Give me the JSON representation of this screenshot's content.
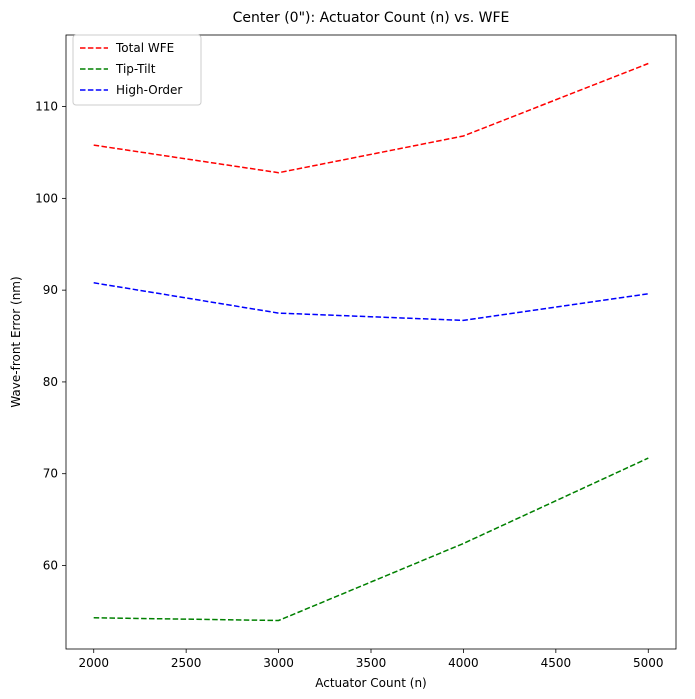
{
  "chart_data": {
    "type": "line",
    "title": "Center (0\"): Actuator Count (n) vs. WFE",
    "xlabel": "Actuator Count (n)",
    "ylabel": "Wave-front Error (nm)",
    "x": [
      2000,
      3000,
      4000,
      5000
    ],
    "xlim": [
      1850,
      5150
    ],
    "ylim": [
      50.9,
      117.8
    ],
    "xticks": [
      2000,
      2500,
      3000,
      3500,
      4000,
      4500,
      5000
    ],
    "yticks": [
      60,
      70,
      80,
      90,
      100,
      110
    ],
    "grid": false,
    "legend_position": "top-left",
    "series": [
      {
        "name": "Total WFE",
        "color": "#ff0000",
        "style": "dashed",
        "values": [
          105.8,
          102.8,
          106.8,
          114.7
        ]
      },
      {
        "name": "Tip-Tilt",
        "color": "#008000",
        "style": "dashed",
        "values": [
          54.3,
          54.0,
          62.4,
          71.7
        ]
      },
      {
        "name": "High-Order",
        "color": "#0000ff",
        "style": "dashed",
        "values": [
          90.8,
          87.5,
          86.7,
          89.6
        ]
      }
    ]
  }
}
